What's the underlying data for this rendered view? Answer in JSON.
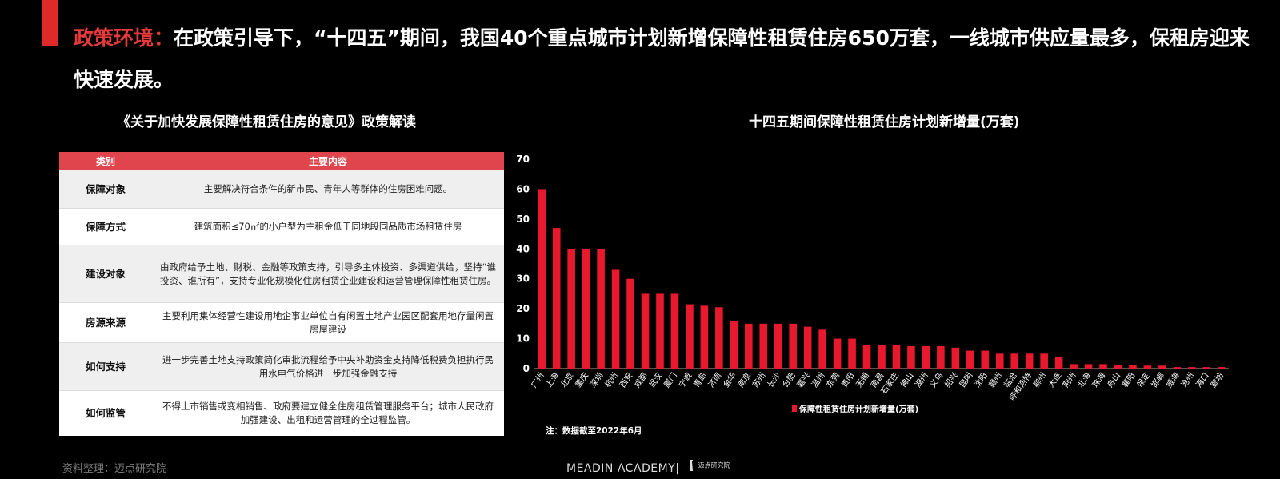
{
  "headline": {
    "lead": "政策环境：",
    "text": "在政策引导下，“十四五”期间，我国40个重点城市计划新增保障性租赁住房650万套，一线城市供应量最多，保租房迎来快速发展。"
  },
  "left_section": {
    "title": "《关于加快发展保障性租赁住房的意见》政策解读",
    "table": {
      "headers": [
        "类别",
        "主要内容"
      ],
      "rows": [
        {
          "category": "保障对象",
          "content": "主要解决符合条件的新市民、青年人等群体的住房困难问题。"
        },
        {
          "category": "保障方式",
          "content": "建筑面积≤70㎡的小户型为主租金低于同地段同品质市场租赁住房"
        },
        {
          "category": "建设对象",
          "content": "由政府给予土地、财税、金融等政策支持，引导多主体投资、多渠道供给，坚持“谁投资、谁所有”，支持专业化规模化住房租赁企业建设和运营管理保障性租赁住房。"
        },
        {
          "category": "房源来源",
          "content": "主要利用集体经营性建设用地企事业单位自有闲置土地产业园区配套用地存量闲置房屋建设"
        },
        {
          "category": "如何支持",
          "content": "进一步完善土地支持政策简化审批流程给予中央补助资金支持降低税费负担执行民用水电气价格进一步加强金融支持"
        },
        {
          "category": "如何监管",
          "content": "不得上市销售或变相销售、政府要建立健全住房租赁管理服务平台；城市人民政府加强建设、出租和运营管理的全过程监管。"
        }
      ]
    }
  },
  "right_section": {
    "title": "十四五期间保障性租赁住房计划新增量(万套)",
    "note": "注：数据截至2022年6月"
  },
  "chart_data": {
    "type": "bar",
    "title": "十四五期间保障性租赁住房计划新增量(万套)",
    "categories": [
      "广州",
      "上海",
      "北京",
      "重庆",
      "深圳",
      "杭州",
      "西安",
      "成都",
      "武汉",
      "厦门",
      "宁波",
      "青岛",
      "济南",
      "金华",
      "南京",
      "苏州",
      "长沙",
      "合肥",
      "嘉兴",
      "温州",
      "东莞",
      "贵阳",
      "无锡",
      "南昌",
      "石家庄",
      "佛山",
      "湖州",
      "义乌",
      "绍兴",
      "昆明",
      "沈阳",
      "赣州",
      "临沧",
      "呼和浩特",
      "柳州",
      "大连",
      "荆州",
      "北海",
      "珠海",
      "舟山",
      "襄阳",
      "保定",
      "邯郸",
      "威海",
      "沧州",
      "海口",
      "廊坊"
    ],
    "series": [
      {
        "name": "保障性租赁住房计划新增量(万套)",
        "values": [
          60,
          47,
          40,
          40,
          40,
          33,
          30,
          25,
          25,
          25,
          21.5,
          21,
          20.5,
          16,
          15,
          15,
          15,
          15,
          14,
          13,
          10,
          10,
          8,
          8,
          8,
          7.5,
          7.5,
          7.5,
          7,
          6,
          6,
          5,
          5,
          5,
          5,
          4,
          1.5,
          1.5,
          1.5,
          1.2,
          1.2,
          1,
          1,
          0.5,
          0.5,
          0.5,
          0.5
        ]
      }
    ],
    "ylim": [
      0,
      70
    ],
    "yticks": [
      0,
      10,
      20,
      30,
      40,
      50,
      60,
      70
    ],
    "grid": false,
    "legend": "bottom",
    "color": "#e8192c"
  },
  "footer": {
    "source": "资料整理：迈点研究院",
    "brand": "MEADIN ACADEMY|",
    "logo_text": "迈点研究院"
  }
}
